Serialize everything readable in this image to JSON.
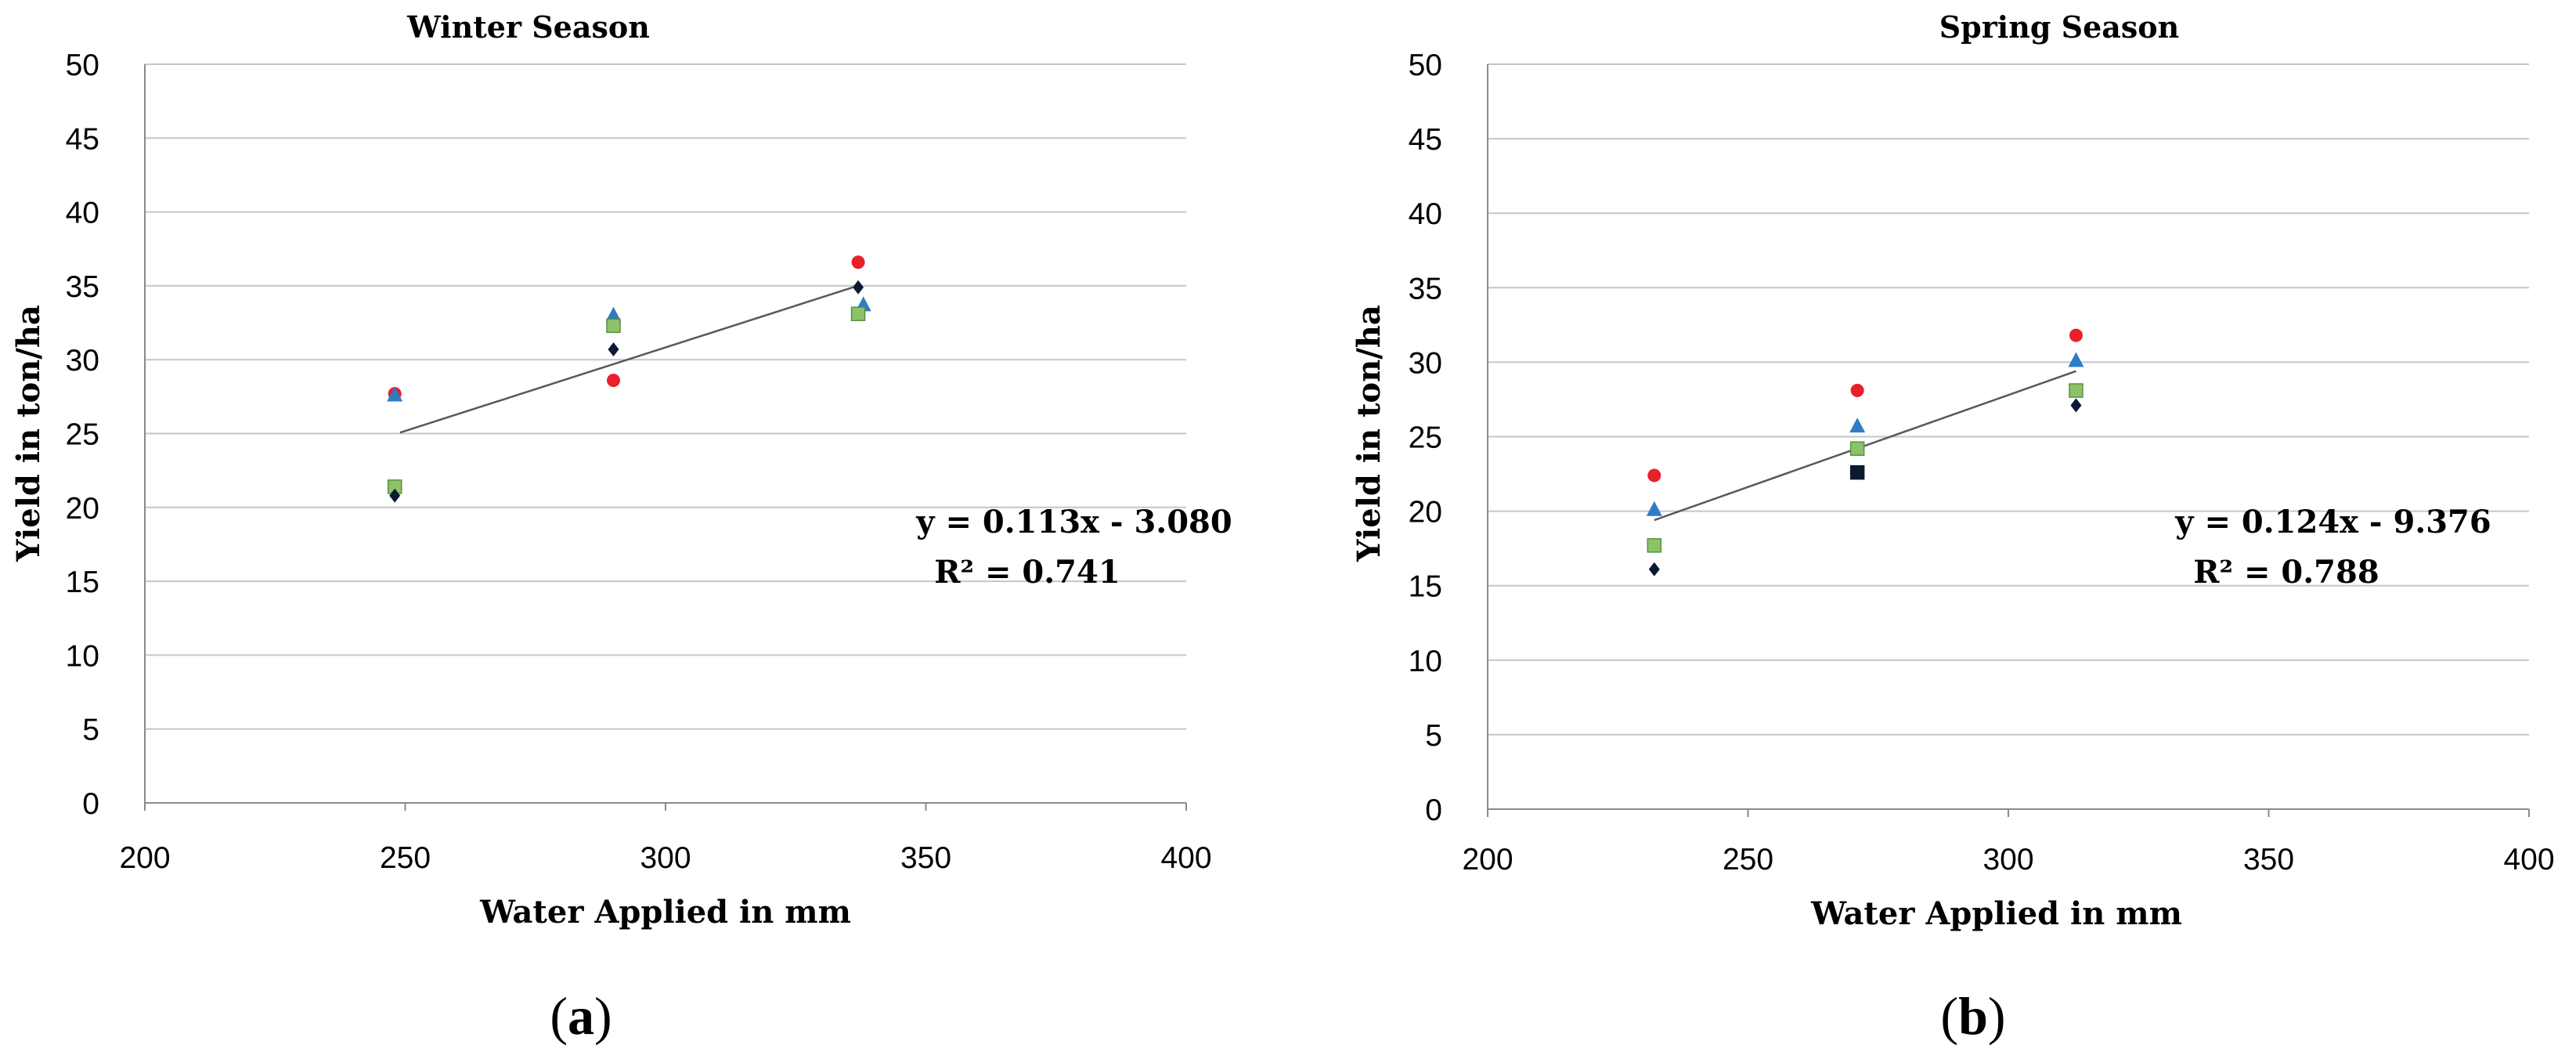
{
  "chart_data": [
    {
      "type": "scatter",
      "title": "Winter Season",
      "xlabel": "Water Applied in mm",
      "ylabel": "Yield in ton/ha",
      "xlim": [
        200,
        400
      ],
      "ylim": [
        0,
        50
      ],
      "x_ticks": [
        "200",
        "250",
        "300",
        "350",
        "400"
      ],
      "y_ticks": [
        "0",
        "5",
        "10",
        "15",
        "20",
        "25",
        "30",
        "35",
        "40",
        "45",
        "50"
      ],
      "grid": true,
      "series": [
        {
          "marker": "circle",
          "color": "#e8202a",
          "x": [
            248,
            290,
            337
          ],
          "y": [
            27.7,
            28.6,
            36.6
          ]
        },
        {
          "marker": "triangle",
          "color": "#2e7cc4",
          "x": [
            248,
            290,
            338
          ],
          "y": [
            27.6,
            33.0,
            33.7
          ]
        },
        {
          "marker": "square",
          "color": "#8cc36a",
          "x": [
            248,
            290,
            337
          ],
          "y": [
            21.4,
            32.3,
            33.1
          ]
        },
        {
          "marker": "diamond",
          "color": "#0b1a33",
          "x": [
            248,
            290,
            337
          ],
          "y": [
            20.8,
            30.7,
            34.9
          ]
        }
      ],
      "trendline": {
        "x": [
          249,
          336
        ],
        "y": [
          25.06,
          34.9
        ]
      },
      "equation": "y = 0.113x - 3.080",
      "r2": "R² = 0.741",
      "panel_label_open": "(",
      "panel_label_letter": "a",
      "panel_label_close": ")"
    },
    {
      "type": "scatter",
      "title": "Spring Season",
      "xlabel": "Water Applied in mm",
      "ylabel": "Yield in ton/ha",
      "xlim": [
        200,
        400
      ],
      "ylim": [
        0,
        50
      ],
      "x_ticks": [
        "200",
        "250",
        "300",
        "350",
        "400"
      ],
      "y_ticks": [
        "0",
        "5",
        "10",
        "15",
        "20",
        "25",
        "30",
        "35",
        "40",
        "45",
        "50"
      ],
      "grid": true,
      "series": [
        {
          "marker": "circle",
          "color": "#e8202a",
          "x": [
            232,
            271,
            313
          ],
          "y": [
            22.4,
            28.1,
            31.8
          ]
        },
        {
          "marker": "triangle",
          "color": "#2e7cc4",
          "x": [
            232,
            271,
            313
          ],
          "y": [
            20.1,
            25.7,
            30.1
          ]
        },
        {
          "marker": "square",
          "color": "#8cc36a",
          "x": [
            232,
            271,
            313
          ],
          "y": [
            17.7,
            24.2,
            28.1
          ]
        },
        {
          "marker": "square",
          "color": "#0b1a33",
          "x": [
            271
          ],
          "y": [
            22.6
          ]
        },
        {
          "marker": "diamond",
          "color": "#0b1a33",
          "x": [
            232,
            313
          ],
          "y": [
            16.1,
            27.1
          ]
        }
      ],
      "trendline": {
        "x": [
          232,
          313
        ],
        "y": [
          19.4,
          29.4
        ]
      },
      "equation": "y = 0.124x - 9.376",
      "r2": "R² = 0.788",
      "panel_label_open": "(",
      "panel_label_letter": "b",
      "panel_label_close": ")"
    }
  ]
}
